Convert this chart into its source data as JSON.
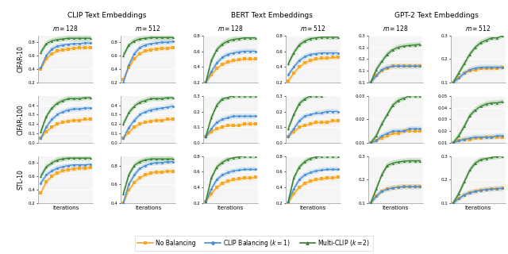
{
  "col_groups": [
    "CLIP Text Embeddings",
    "BERT Text Embeddings",
    "GPT-2 Text Embeddings"
  ],
  "row_labels": [
    "CIFAR-10",
    "CIFAR-100",
    "STL-10"
  ],
  "colors": {
    "orange": "#F5A623",
    "blue": "#4A8FD4",
    "green": "#3A7D35"
  },
  "colors_light": {
    "orange": "#FCDBA0",
    "blue": "#AACFED",
    "green": "#96CC90"
  },
  "n_points": 10,
  "legend_labels": [
    "No Balancing",
    "CLIP Balancing ($k = 1$)",
    "Multi-CLIP ($k = 2$)"
  ],
  "ylims": {
    "CIFAR-10": {
      "CLIP_128": [
        0.2,
        0.9
      ],
      "CLIP_512": [
        0.2,
        0.9
      ],
      "BERT_128": [
        0.2,
        0.8
      ],
      "BERT_512": [
        0.2,
        0.8
      ],
      "GPT2_128": [
        0.1,
        0.3
      ],
      "GPT2_512": [
        0.1,
        0.3
      ]
    },
    "CIFAR-100": {
      "CLIP_128": [
        0.0,
        0.5
      ],
      "CLIP_512": [
        0.0,
        0.5
      ],
      "BERT_128": [
        0.0,
        0.3
      ],
      "BERT_512": [
        0.0,
        0.3
      ],
      "GPT2_128": [
        0.01,
        0.03
      ],
      "GPT2_512": [
        0.01,
        0.05
      ]
    },
    "STL-10": {
      "CLIP_128": [
        0.2,
        0.9
      ],
      "CLIP_512": [
        0.4,
        0.9
      ],
      "BERT_128": [
        0.2,
        0.8
      ],
      "BERT_512": [
        0.2,
        0.8
      ],
      "GPT2_128": [
        0.1,
        0.3
      ],
      "GPT2_512": [
        0.1,
        0.3
      ]
    }
  },
  "yticks": {
    "CIFAR-10": {
      "CLIP_128": [
        0.2,
        0.4,
        0.6,
        0.8
      ],
      "CLIP_512": [
        0.2,
        0.4,
        0.6,
        0.8
      ],
      "BERT_128": [
        0.2,
        0.4,
        0.6,
        0.8
      ],
      "BERT_512": [
        0.2,
        0.4,
        0.6,
        0.8
      ],
      "GPT2_128": [
        0.1,
        0.15,
        0.2,
        0.25,
        0.3
      ],
      "GPT2_512": [
        0.1,
        0.2,
        0.3
      ]
    },
    "CIFAR-100": {
      "CLIP_128": [
        0.0,
        0.1,
        0.2,
        0.3,
        0.4
      ],
      "CLIP_512": [
        0.0,
        0.1,
        0.2,
        0.3,
        0.4
      ],
      "BERT_128": [
        0.0,
        0.1,
        0.2,
        0.3
      ],
      "BERT_512": [
        0.0,
        0.1,
        0.2,
        0.3
      ],
      "GPT2_128": [
        0.01,
        0.02,
        0.03
      ],
      "GPT2_512": [
        0.01,
        0.02,
        0.03,
        0.04,
        0.05
      ]
    },
    "STL-10": {
      "CLIP_128": [
        0.2,
        0.4,
        0.6,
        0.8
      ],
      "CLIP_512": [
        0.4,
        0.6,
        0.8
      ],
      "BERT_128": [
        0.2,
        0.4,
        0.6,
        0.8
      ],
      "BERT_512": [
        0.2,
        0.4,
        0.6,
        0.8
      ],
      "GPT2_128": [
        0.1,
        0.2,
        0.3
      ],
      "GPT2_512": [
        0.1,
        0.2,
        0.3
      ]
    }
  },
  "data": {
    "CIFAR-10": {
      "CLIP_128": {
        "orange": [
          0.4,
          0.55,
          0.63,
          0.67,
          0.69,
          0.7,
          0.71,
          0.72,
          0.72,
          0.72
        ],
        "blue": [
          0.42,
          0.6,
          0.7,
          0.74,
          0.76,
          0.77,
          0.78,
          0.78,
          0.79,
          0.79
        ],
        "green": [
          0.65,
          0.78,
          0.82,
          0.84,
          0.85,
          0.86,
          0.86,
          0.86,
          0.86,
          0.86
        ]
      },
      "CLIP_512": {
        "orange": [
          0.25,
          0.42,
          0.56,
          0.63,
          0.67,
          0.69,
          0.7,
          0.71,
          0.71,
          0.72
        ],
        "blue": [
          0.2,
          0.46,
          0.63,
          0.72,
          0.76,
          0.78,
          0.79,
          0.8,
          0.8,
          0.81
        ],
        "green": [
          0.6,
          0.76,
          0.82,
          0.85,
          0.86,
          0.87,
          0.87,
          0.87,
          0.87,
          0.87
        ]
      },
      "BERT_128": {
        "orange": [
          0.2,
          0.3,
          0.38,
          0.43,
          0.46,
          0.48,
          0.49,
          0.5,
          0.5,
          0.5
        ],
        "blue": [
          0.2,
          0.34,
          0.45,
          0.52,
          0.56,
          0.58,
          0.59,
          0.6,
          0.6,
          0.6
        ],
        "green": [
          0.2,
          0.48,
          0.62,
          0.69,
          0.73,
          0.75,
          0.76,
          0.77,
          0.77,
          0.77
        ]
      },
      "BERT_512": {
        "orange": [
          0.22,
          0.32,
          0.4,
          0.45,
          0.48,
          0.5,
          0.51,
          0.51,
          0.52,
          0.52
        ],
        "blue": [
          0.3,
          0.4,
          0.48,
          0.53,
          0.56,
          0.57,
          0.58,
          0.58,
          0.58,
          0.58
        ],
        "green": [
          0.44,
          0.58,
          0.68,
          0.73,
          0.76,
          0.77,
          0.78,
          0.78,
          0.78,
          0.78
        ]
      },
      "GPT2_128": {
        "orange": [
          0.1,
          0.13,
          0.15,
          0.16,
          0.17,
          0.17,
          0.17,
          0.17,
          0.17,
          0.17
        ],
        "blue": [
          0.1,
          0.13,
          0.155,
          0.165,
          0.17,
          0.17,
          0.17,
          0.17,
          0.17,
          0.17
        ],
        "green": [
          0.1,
          0.155,
          0.19,
          0.22,
          0.24,
          0.25,
          0.255,
          0.258,
          0.26,
          0.262
        ]
      },
      "GPT2_512": {
        "orange": [
          0.1,
          0.12,
          0.14,
          0.15,
          0.155,
          0.16,
          0.16,
          0.16,
          0.16,
          0.165
        ],
        "blue": [
          0.1,
          0.12,
          0.14,
          0.155,
          0.162,
          0.165,
          0.166,
          0.166,
          0.166,
          0.166
        ],
        "green": [
          0.1,
          0.14,
          0.18,
          0.22,
          0.25,
          0.27,
          0.28,
          0.29,
          0.29,
          0.3
        ]
      }
    },
    "CIFAR-100": {
      "CLIP_128": {
        "orange": [
          0.05,
          0.12,
          0.17,
          0.2,
          0.22,
          0.23,
          0.24,
          0.24,
          0.25,
          0.25
        ],
        "blue": [
          0.05,
          0.17,
          0.25,
          0.3,
          0.33,
          0.35,
          0.36,
          0.36,
          0.37,
          0.37
        ],
        "green": [
          0.12,
          0.28,
          0.37,
          0.42,
          0.45,
          0.47,
          0.47,
          0.47,
          0.48,
          0.48
        ]
      },
      "CLIP_512": {
        "orange": [
          0.05,
          0.11,
          0.17,
          0.2,
          0.22,
          0.23,
          0.24,
          0.24,
          0.25,
          0.25
        ],
        "blue": [
          0.05,
          0.16,
          0.24,
          0.3,
          0.33,
          0.35,
          0.36,
          0.37,
          0.38,
          0.39
        ],
        "green": [
          0.2,
          0.32,
          0.39,
          0.43,
          0.45,
          0.47,
          0.47,
          0.47,
          0.48,
          0.48
        ]
      },
      "BERT_128": {
        "orange": [
          0.04,
          0.07,
          0.09,
          0.1,
          0.11,
          0.11,
          0.11,
          0.12,
          0.12,
          0.12
        ],
        "blue": [
          0.04,
          0.09,
          0.13,
          0.15,
          0.16,
          0.17,
          0.17,
          0.17,
          0.17,
          0.17
        ],
        "green": [
          0.04,
          0.16,
          0.24,
          0.28,
          0.29,
          0.3,
          0.3,
          0.3,
          0.3,
          0.3
        ]
      },
      "BERT_512": {
        "orange": [
          0.04,
          0.07,
          0.1,
          0.11,
          0.12,
          0.13,
          0.13,
          0.13,
          0.14,
          0.14
        ],
        "blue": [
          0.04,
          0.09,
          0.14,
          0.17,
          0.18,
          0.19,
          0.19,
          0.2,
          0.2,
          0.2
        ],
        "green": [
          0.09,
          0.18,
          0.25,
          0.28,
          0.3,
          0.3,
          0.3,
          0.31,
          0.31,
          0.31
        ]
      },
      "GPT2_128": {
        "orange": [
          0.01,
          0.011,
          0.012,
          0.013,
          0.014,
          0.014,
          0.015,
          0.015,
          0.015,
          0.015
        ],
        "blue": [
          0.01,
          0.011,
          0.013,
          0.014,
          0.015,
          0.015,
          0.015,
          0.016,
          0.016,
          0.016
        ],
        "green": [
          0.01,
          0.013,
          0.018,
          0.022,
          0.026,
          0.028,
          0.029,
          0.03,
          0.03,
          0.03
        ]
      },
      "GPT2_512": {
        "orange": [
          0.01,
          0.012,
          0.013,
          0.013,
          0.014,
          0.014,
          0.015,
          0.015,
          0.015,
          0.015
        ],
        "blue": [
          0.01,
          0.012,
          0.013,
          0.014,
          0.015,
          0.015,
          0.015,
          0.015,
          0.016,
          0.016
        ],
        "green": [
          0.01,
          0.016,
          0.024,
          0.033,
          0.038,
          0.041,
          0.043,
          0.044,
          0.044,
          0.045
        ]
      }
    },
    "STL-10": {
      "CLIP_128": {
        "orange": [
          0.35,
          0.52,
          0.6,
          0.65,
          0.68,
          0.7,
          0.71,
          0.72,
          0.72,
          0.73
        ],
        "blue": [
          0.5,
          0.62,
          0.68,
          0.72,
          0.74,
          0.76,
          0.77,
          0.77,
          0.77,
          0.78
        ],
        "green": [
          0.6,
          0.74,
          0.8,
          0.84,
          0.86,
          0.87,
          0.87,
          0.87,
          0.87,
          0.87
        ]
      },
      "CLIP_512": {
        "orange": [
          0.4,
          0.54,
          0.62,
          0.67,
          0.7,
          0.72,
          0.73,
          0.73,
          0.74,
          0.74
        ],
        "blue": [
          0.4,
          0.6,
          0.7,
          0.77,
          0.8,
          0.82,
          0.83,
          0.83,
          0.84,
          0.84
        ],
        "green": [
          0.5,
          0.7,
          0.8,
          0.84,
          0.86,
          0.87,
          0.87,
          0.87,
          0.87,
          0.87
        ]
      },
      "BERT_128": {
        "orange": [
          0.22,
          0.32,
          0.4,
          0.45,
          0.48,
          0.5,
          0.51,
          0.52,
          0.52,
          0.53
        ],
        "blue": [
          0.22,
          0.38,
          0.5,
          0.56,
          0.59,
          0.61,
          0.62,
          0.63,
          0.63,
          0.63
        ],
        "green": [
          0.22,
          0.52,
          0.66,
          0.72,
          0.76,
          0.78,
          0.79,
          0.8,
          0.8,
          0.8
        ]
      },
      "BERT_512": {
        "orange": [
          0.2,
          0.32,
          0.4,
          0.45,
          0.48,
          0.5,
          0.51,
          0.52,
          0.52,
          0.53
        ],
        "blue": [
          0.22,
          0.38,
          0.5,
          0.56,
          0.59,
          0.61,
          0.62,
          0.63,
          0.63,
          0.63
        ],
        "green": [
          0.22,
          0.52,
          0.66,
          0.73,
          0.77,
          0.79,
          0.8,
          0.8,
          0.8,
          0.8
        ]
      },
      "GPT2_128": {
        "orange": [
          0.1,
          0.13,
          0.15,
          0.16,
          0.165,
          0.168,
          0.17,
          0.17,
          0.17,
          0.17
        ],
        "blue": [
          0.1,
          0.13,
          0.15,
          0.16,
          0.165,
          0.168,
          0.17,
          0.17,
          0.17,
          0.17
        ],
        "green": [
          0.1,
          0.16,
          0.22,
          0.26,
          0.27,
          0.275,
          0.278,
          0.28,
          0.28,
          0.28
        ]
      },
      "GPT2_512": {
        "orange": [
          0.1,
          0.12,
          0.135,
          0.145,
          0.15,
          0.155,
          0.158,
          0.16,
          0.162,
          0.163
        ],
        "blue": [
          0.1,
          0.12,
          0.135,
          0.145,
          0.15,
          0.155,
          0.158,
          0.16,
          0.162,
          0.163
        ],
        "green": [
          0.1,
          0.14,
          0.19,
          0.24,
          0.27,
          0.285,
          0.29,
          0.295,
          0.298,
          0.3
        ]
      }
    }
  }
}
